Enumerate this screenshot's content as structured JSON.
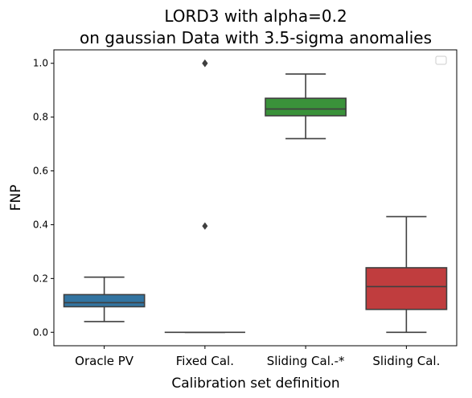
{
  "chart_data": {
    "type": "box",
    "title_lines": [
      "LORD3 with alpha=0.2",
      "on gaussian Data with 3.5-sigma anomalies"
    ],
    "xlabel": "Calibration set definition",
    "ylabel": "FNP",
    "ylim": [
      -0.05,
      1.05
    ],
    "yticks": [
      0.0,
      0.2,
      0.4,
      0.6,
      0.8,
      1.0
    ],
    "ytick_labels": [
      "0.0",
      "0.2",
      "0.4",
      "0.6",
      "0.8",
      "1.0"
    ],
    "grid": false,
    "legend": {
      "placement": "top-right",
      "entries": []
    },
    "categories": [
      "Oracle PV",
      "Fixed Cal.",
      "Sliding Cal.-*",
      "Sliding Cal."
    ],
    "boxes": [
      {
        "category": "Oracle PV",
        "color": "#3274a1",
        "whisker_low": 0.04,
        "q1": 0.095,
        "median": 0.11,
        "q3": 0.14,
        "whisker_high": 0.205,
        "outliers": []
      },
      {
        "category": "Fixed Cal.",
        "color": "#e1812c",
        "whisker_low": 0.0,
        "q1": 0.0,
        "median": 0.0,
        "q3": 0.0,
        "whisker_high": 0.0,
        "outliers": [
          0.395,
          1.0,
          1.0,
          1.0
        ]
      },
      {
        "category": "Sliding Cal.-*",
        "color": "#3a923a",
        "whisker_low": 0.72,
        "q1": 0.805,
        "median": 0.83,
        "q3": 0.87,
        "whisker_high": 0.96,
        "outliers": []
      },
      {
        "category": "Sliding Cal.",
        "color": "#c03d3e",
        "whisker_low": 0.0,
        "q1": 0.085,
        "median": 0.17,
        "q3": 0.24,
        "whisker_high": 0.43,
        "outliers": []
      }
    ]
  }
}
